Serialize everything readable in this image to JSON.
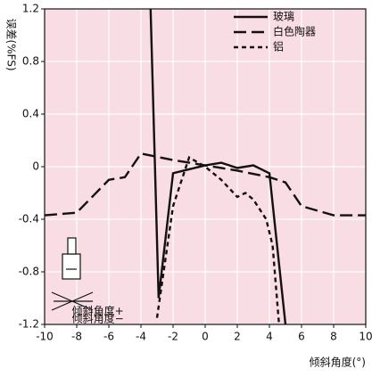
{
  "chart_data": {
    "type": "line",
    "y_label": "误差(%FS)",
    "x_label": "倾斜角度(°)",
    "xlim": [
      -10,
      10
    ],
    "xticks": [
      -10,
      -8,
      -6,
      -4,
      -2,
      0,
      2,
      4,
      6,
      8,
      10
    ],
    "ylim": [
      -1.2,
      1.2
    ],
    "yticks": [
      -1.2,
      -0.8,
      -0.4,
      0,
      0.4,
      0.8,
      1.2
    ],
    "grid": true,
    "legend": "upper right",
    "background": "#f9dde4",
    "series": [
      {
        "name": "玻璃",
        "color": "#111111",
        "dash": "solid",
        "x": [
          -3.4,
          -2.9,
          -2,
          -1,
          0,
          1,
          2,
          3,
          4,
          5
        ],
        "values": [
          1.2,
          -1.0,
          -0.05,
          -0.02,
          0.01,
          0.03,
          -0.01,
          0.01,
          -0.05,
          -1.2
        ]
      },
      {
        "name": "白色陶器",
        "color": "#111111",
        "dash": "long",
        "x": [
          -10,
          -8,
          -6,
          -5,
          -4,
          -2,
          0,
          2,
          4,
          5,
          6,
          8,
          10
        ],
        "values": [
          -0.37,
          -0.35,
          -0.1,
          -0.08,
          0.1,
          0.05,
          0.01,
          -0.03,
          -0.08,
          -0.12,
          -0.3,
          -0.37,
          -0.37
        ]
      },
      {
        "name": "铝",
        "color": "#111111",
        "dash": "short",
        "x": [
          -3,
          -2,
          -1,
          0,
          1,
          2,
          2.5,
          3,
          3.8,
          4.2,
          4.6
        ],
        "values": [
          -1.15,
          -0.3,
          0.07,
          0,
          -0.1,
          -0.23,
          -0.2,
          -0.25,
          -0.4,
          -0.6,
          -1.2
        ]
      }
    ],
    "annotations": [
      {
        "text": "倾斜角度+",
        "x": -8.3,
        "y": -1.1
      },
      {
        "text": "倾斜角度−",
        "x": -8.3,
        "y": -1.16
      }
    ]
  }
}
